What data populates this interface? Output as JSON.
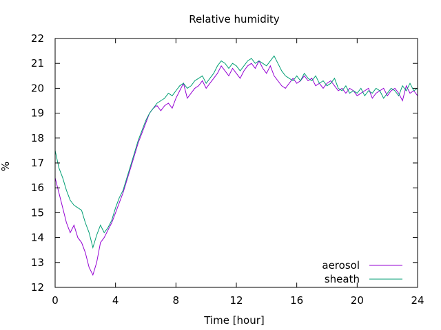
{
  "chart_data": {
    "type": "line",
    "title": "Relative humidity",
    "xlabel": "Time [hour]",
    "ylabel": "%",
    "xlim": [
      0,
      24
    ],
    "ylim": [
      12,
      22
    ],
    "xticks": [
      0,
      4,
      8,
      12,
      16,
      20,
      24
    ],
    "yticks": [
      12,
      13,
      14,
      15,
      16,
      17,
      18,
      19,
      20,
      21,
      22
    ],
    "grid": false,
    "legend": "bottom-right",
    "series": [
      {
        "name": "aerosol",
        "color": "#9400d3",
        "x": [
          0,
          0.25,
          0.5,
          0.75,
          1,
          1.25,
          1.5,
          1.75,
          2,
          2.25,
          2.5,
          2.75,
          3,
          3.25,
          3.5,
          3.75,
          4,
          4.25,
          4.5,
          4.75,
          5,
          5.25,
          5.5,
          5.75,
          6,
          6.25,
          6.5,
          6.75,
          7,
          7.25,
          7.5,
          7.75,
          8,
          8.25,
          8.5,
          8.75,
          9,
          9.25,
          9.5,
          9.75,
          10,
          10.25,
          10.5,
          10.75,
          11,
          11.25,
          11.5,
          11.75,
          12,
          12.25,
          12.5,
          12.75,
          13,
          13.25,
          13.5,
          13.75,
          14,
          14.25,
          14.5,
          14.75,
          15,
          15.25,
          15.5,
          15.75,
          16,
          16.25,
          16.5,
          16.75,
          17,
          17.25,
          17.5,
          17.75,
          18,
          18.25,
          18.5,
          18.75,
          19,
          19.25,
          19.5,
          19.75,
          20,
          20.25,
          20.5,
          20.75,
          21,
          21.25,
          21.5,
          21.75,
          22,
          22.25,
          22.5,
          22.75,
          23,
          23.25,
          23.5,
          23.75,
          24
        ],
        "y": [
          16.4,
          15.8,
          15.2,
          14.6,
          14.2,
          14.5,
          14.0,
          13.8,
          13.4,
          12.8,
          12.5,
          13.0,
          13.8,
          14.0,
          14.3,
          14.6,
          15.0,
          15.4,
          15.8,
          16.3,
          16.8,
          17.3,
          17.8,
          18.2,
          18.6,
          19.0,
          19.2,
          19.3,
          19.1,
          19.3,
          19.4,
          19.2,
          19.6,
          19.9,
          20.2,
          19.6,
          19.8,
          20.0,
          20.1,
          20.3,
          20.0,
          20.2,
          20.4,
          20.6,
          20.9,
          20.7,
          20.5,
          20.8,
          20.6,
          20.4,
          20.7,
          20.9,
          21.0,
          20.8,
          21.1,
          20.8,
          20.6,
          20.9,
          20.5,
          20.3,
          20.1,
          20.0,
          20.2,
          20.4,
          20.2,
          20.3,
          20.5,
          20.3,
          20.4,
          20.1,
          20.2,
          20.0,
          20.2,
          20.3,
          20.1,
          19.9,
          20.0,
          19.8,
          20.0,
          19.9,
          19.7,
          19.8,
          19.9,
          20.0,
          19.6,
          19.8,
          19.9,
          20.0,
          19.7,
          19.9,
          20.0,
          19.8,
          19.5,
          20.1,
          19.8,
          19.9,
          19.7
        ]
      },
      {
        "name": "sheath",
        "color": "#009e73",
        "x": [
          0,
          0.25,
          0.5,
          0.75,
          1,
          1.25,
          1.5,
          1.75,
          2,
          2.25,
          2.5,
          2.75,
          3,
          3.25,
          3.5,
          3.75,
          4,
          4.25,
          4.5,
          4.75,
          5,
          5.25,
          5.5,
          5.75,
          6,
          6.25,
          6.5,
          6.75,
          7,
          7.25,
          7.5,
          7.75,
          8,
          8.25,
          8.5,
          8.75,
          9,
          9.25,
          9.5,
          9.75,
          10,
          10.25,
          10.5,
          10.75,
          11,
          11.25,
          11.5,
          11.75,
          12,
          12.25,
          12.5,
          12.75,
          13,
          13.25,
          13.5,
          13.75,
          14,
          14.25,
          14.5,
          14.75,
          15,
          15.25,
          15.5,
          15.75,
          16,
          16.25,
          16.5,
          16.75,
          17,
          17.25,
          17.5,
          17.75,
          18,
          18.25,
          18.5,
          18.75,
          19,
          19.25,
          19.5,
          19.75,
          20,
          20.25,
          20.5,
          20.75,
          21,
          21.25,
          21.5,
          21.75,
          22,
          22.25,
          22.5,
          22.75,
          23,
          23.25,
          23.5,
          23.75,
          24
        ],
        "y": [
          17.5,
          16.8,
          16.4,
          15.9,
          15.5,
          15.3,
          15.2,
          15.1,
          14.6,
          14.2,
          13.6,
          14.1,
          14.5,
          14.2,
          14.4,
          14.7,
          15.2,
          15.6,
          15.9,
          16.4,
          16.9,
          17.4,
          17.9,
          18.3,
          18.7,
          19.0,
          19.2,
          19.4,
          19.5,
          19.6,
          19.8,
          19.7,
          19.9,
          20.1,
          20.2,
          20.0,
          20.1,
          20.3,
          20.4,
          20.5,
          20.2,
          20.4,
          20.6,
          20.9,
          21.1,
          21.0,
          20.8,
          21.0,
          20.9,
          20.7,
          20.9,
          21.1,
          21.2,
          21.0,
          21.1,
          21.0,
          20.9,
          21.1,
          21.3,
          21.0,
          20.7,
          20.5,
          20.4,
          20.3,
          20.5,
          20.3,
          20.6,
          20.4,
          20.3,
          20.5,
          20.2,
          20.3,
          20.1,
          20.2,
          20.4,
          20.0,
          19.9,
          20.1,
          19.8,
          19.9,
          19.8,
          20.0,
          19.7,
          19.9,
          19.8,
          20.0,
          19.9,
          19.6,
          19.8,
          20.0,
          19.9,
          19.7,
          20.1,
          19.9,
          20.2,
          19.9,
          20.0
        ]
      }
    ]
  }
}
